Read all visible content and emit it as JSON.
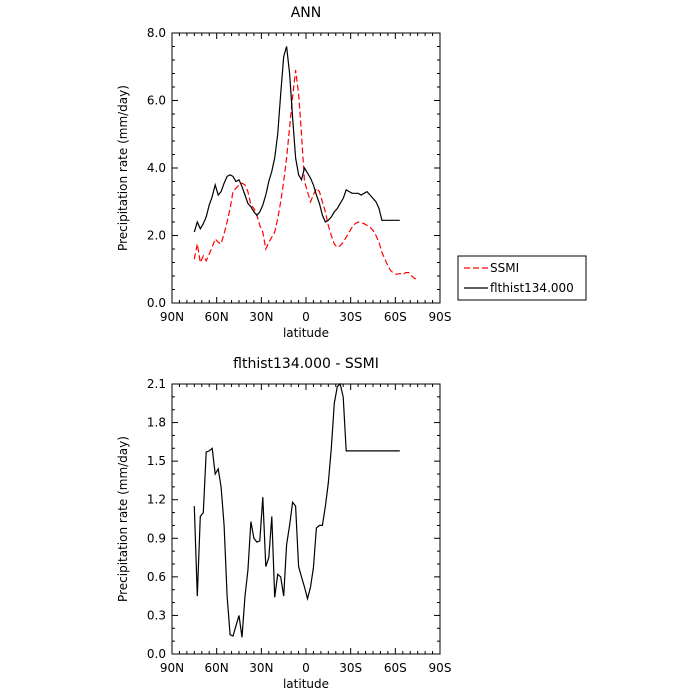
{
  "chart_data": [
    {
      "type": "line",
      "title": "ANN",
      "xlabel": "latitude",
      "ylabel": "Precipitation rate (mm/day)",
      "xlim": [
        -90,
        90
      ],
      "ylim": [
        0,
        8
      ],
      "xticks": [
        {
          "value": -90,
          "label": "90N"
        },
        {
          "value": -60,
          "label": "60N"
        },
        {
          "value": -30,
          "label": "30N"
        },
        {
          "value": 0,
          "label": "0"
        },
        {
          "value": 30,
          "label": "30S"
        },
        {
          "value": 60,
          "label": "60S"
        },
        {
          "value": 90,
          "label": "90S"
        }
      ],
      "yticks": [
        {
          "value": 0,
          "label": "0.0"
        },
        {
          "value": 2,
          "label": "2.0"
        },
        {
          "value": 4,
          "label": "4.0"
        },
        {
          "value": 6,
          "label": "6.0"
        },
        {
          "value": 8,
          "label": "8.0"
        }
      ],
      "legend": {
        "placement": "right"
      },
      "series": [
        {
          "name": "SSMI",
          "color": "#ff0000",
          "dash": true,
          "x": [
            -75,
            -73,
            -71,
            -69,
            -67,
            -65,
            -63,
            -61,
            -59,
            -57,
            -55,
            -53,
            -51,
            -49,
            -47,
            -45,
            -43,
            -41,
            -39,
            -37,
            -35,
            -33,
            -31,
            -29,
            -27,
            -25,
            -23,
            -21,
            -19,
            -17,
            -15,
            -13,
            -11,
            -9,
            -7,
            -5,
            -3,
            -1,
            1,
            3,
            5,
            7,
            9,
            11,
            13,
            15,
            17,
            19,
            21,
            23,
            25,
            27,
            29,
            31,
            33,
            35,
            37,
            39,
            41,
            43,
            45,
            47,
            49,
            51,
            53,
            55,
            57,
            59,
            61,
            63,
            65,
            67,
            69,
            71,
            73,
            75
          ],
          "y": [
            1.3,
            1.75,
            1.2,
            1.4,
            1.25,
            1.45,
            1.65,
            1.9,
            1.8,
            1.75,
            2.05,
            2.4,
            2.8,
            3.3,
            3.4,
            3.5,
            3.55,
            3.5,
            3.3,
            2.9,
            2.8,
            2.6,
            2.3,
            2.1,
            1.6,
            1.8,
            1.95,
            2.1,
            2.5,
            3.0,
            3.6,
            4.3,
            5.2,
            6.1,
            6.9,
            6.2,
            5.0,
            3.6,
            3.3,
            3.0,
            3.2,
            3.4,
            3.3,
            3.0,
            2.7,
            2.3,
            2.0,
            1.75,
            1.65,
            1.7,
            1.8,
            1.95,
            2.1,
            2.25,
            2.35,
            2.4,
            2.38,
            2.35,
            2.3,
            2.25,
            2.15,
            2.0,
            1.8,
            1.5,
            1.3,
            1.1,
            0.95,
            0.88,
            0.85,
            0.87,
            0.85,
            0.9,
            0.9,
            0.8,
            0.72,
            0.72
          ]
        },
        {
          "name": "flthist134.000",
          "color": "#000000",
          "dash": false,
          "x": [
            -75,
            -73,
            -71,
            -69,
            -67,
            -65,
            -63,
            -61,
            -59,
            -57,
            -55,
            -53,
            -51,
            -49,
            -47,
            -45,
            -43,
            -41,
            -39,
            -37,
            -35,
            -33,
            -31,
            -29,
            -27,
            -25,
            -23,
            -21,
            -19,
            -17,
            -15,
            -13,
            -11,
            -9,
            -7,
            -5,
            -3,
            -1,
            1,
            3,
            5,
            7,
            9,
            11,
            13,
            15,
            17,
            19,
            21,
            23,
            25,
            27,
            29,
            31,
            33,
            35,
            37,
            39,
            41,
            43,
            45,
            47,
            49,
            51,
            53,
            55,
            57,
            59,
            61,
            63,
            65
          ],
          "y": [
            2.1,
            2.4,
            2.2,
            2.35,
            2.55,
            2.9,
            3.15,
            3.5,
            3.2,
            3.3,
            3.55,
            3.75,
            3.8,
            3.75,
            3.6,
            3.65,
            3.45,
            3.2,
            2.95,
            2.85,
            2.7,
            2.6,
            2.7,
            2.9,
            3.2,
            3.6,
            3.9,
            4.3,
            5.0,
            6.2,
            7.3,
            7.6,
            6.8,
            5.5,
            4.3,
            3.8,
            3.65,
            4.0,
            3.85,
            3.7,
            3.5,
            3.2,
            2.95,
            2.6,
            2.4,
            2.45,
            2.55,
            2.7,
            2.8,
            2.95,
            3.1,
            3.35,
            3.3,
            3.25,
            3.25,
            3.25,
            3.2,
            3.25,
            3.3,
            3.2,
            3.1,
            3.0,
            2.8,
            2.45,
            2.45,
            2.45,
            2.45,
            2.45,
            2.45,
            2.45,
            2.45
          ]
        }
      ]
    },
    {
      "type": "line",
      "title": "flthist134.000 - SSMI",
      "xlabel": "latitude",
      "ylabel": "Precipitation rate (mm/day)",
      "xlim": [
        -90,
        90
      ],
      "ylim": [
        0,
        2.1
      ],
      "xticks": [
        {
          "value": -90,
          "label": "90N"
        },
        {
          "value": -60,
          "label": "60N"
        },
        {
          "value": -30,
          "label": "30N"
        },
        {
          "value": 0,
          "label": "0"
        },
        {
          "value": 30,
          "label": "30S"
        },
        {
          "value": 60,
          "label": "60S"
        },
        {
          "value": 90,
          "label": "90S"
        }
      ],
      "yticks": [
        {
          "value": 0,
          "label": "0.0"
        },
        {
          "value": 0.3,
          "label": "0.3"
        },
        {
          "value": 0.6,
          "label": "0.6"
        },
        {
          "value": 0.9,
          "label": "0.9"
        },
        {
          "value": 1.2,
          "label": "1.2"
        },
        {
          "value": 1.5,
          "label": "1.5"
        },
        {
          "value": 1.8,
          "label": "1.8"
        },
        {
          "value": 2.1,
          "label": "2.1"
        }
      ],
      "series": [
        {
          "color": "#000000",
          "dash": false,
          "x": [
            -75,
            -73,
            -71,
            -69,
            -67,
            -65,
            -63,
            -61,
            -59,
            -57,
            -55,
            -53,
            -51,
            -49,
            -47,
            -45,
            -43,
            -41,
            -39,
            -37,
            -35,
            -33,
            -31,
            -29,
            -27,
            -25,
            -23,
            -21,
            -19,
            -17,
            -15,
            -13,
            -11,
            -9,
            -7,
            -5,
            -3,
            -1,
            1,
            3,
            5,
            7,
            9,
            11,
            13,
            15,
            17,
            19,
            21,
            23,
            25,
            27,
            29,
            31,
            33,
            35,
            37,
            39,
            41,
            43,
            45,
            47,
            49,
            51,
            53,
            55,
            57,
            59,
            61,
            63,
            65
          ],
          "y": [
            1.15,
            0.45,
            1.07,
            1.1,
            1.57,
            1.58,
            1.6,
            1.4,
            1.44,
            1.3,
            1.0,
            0.45,
            0.15,
            0.14,
            0.22,
            0.3,
            0.13,
            0.45,
            0.65,
            1.03,
            0.9,
            0.87,
            0.88,
            1.22,
            0.68,
            0.75,
            1.07,
            0.44,
            0.62,
            0.6,
            0.45,
            0.85,
            1.0,
            1.18,
            1.15,
            0.68,
            0.6,
            0.52,
            0.43,
            0.52,
            0.67,
            0.98,
            1.0,
            1.0,
            1.15,
            1.33,
            1.6,
            1.95,
            2.08,
            2.1,
            2.0,
            1.58,
            1.58,
            1.58,
            1.58,
            1.58,
            1.58,
            1.58,
            1.58,
            1.58,
            1.58,
            1.58,
            1.58,
            1.58,
            1.58,
            1.58,
            1.58,
            1.58,
            1.58,
            1.58,
            1.58
          ]
        }
      ]
    }
  ]
}
